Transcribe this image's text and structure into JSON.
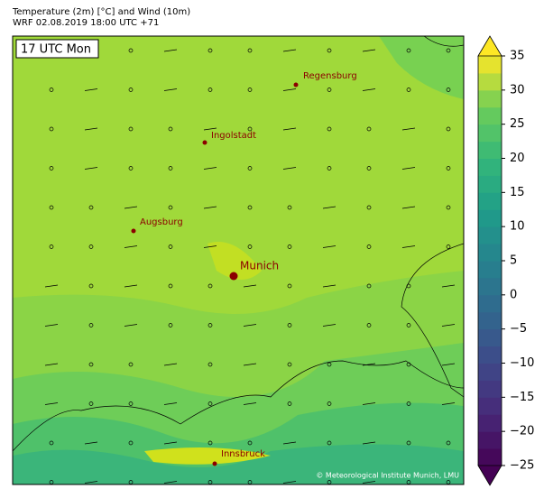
{
  "header": {
    "title": "Temperature (2m) [°C] and Wind (10m)",
    "subtitle": "WRF 02.08.2019 18:00 UTC +71"
  },
  "map": {
    "time_label": "17 UTC Mon",
    "cities": [
      {
        "name": "Regensburg"
      },
      {
        "name": "Ingolstadt"
      },
      {
        "name": "Augsburg"
      },
      {
        "name": "Munich"
      },
      {
        "name": "Innsbruck"
      }
    ],
    "copyright": "© Meteorological Institute Munich, LMU"
  },
  "colorbar": {
    "lim": [
      -25,
      35
    ],
    "ticks": [
      35,
      30,
      25,
      20,
      15,
      10,
      5,
      0,
      {
        "value": -5,
        "label": "−5"
      },
      {
        "value": -10,
        "label": "−10"
      },
      {
        "value": -15,
        "label": "−15"
      },
      {
        "value": -20,
        "label": "−20"
      },
      {
        "value": -25,
        "label": "−25"
      }
    ]
  }
}
